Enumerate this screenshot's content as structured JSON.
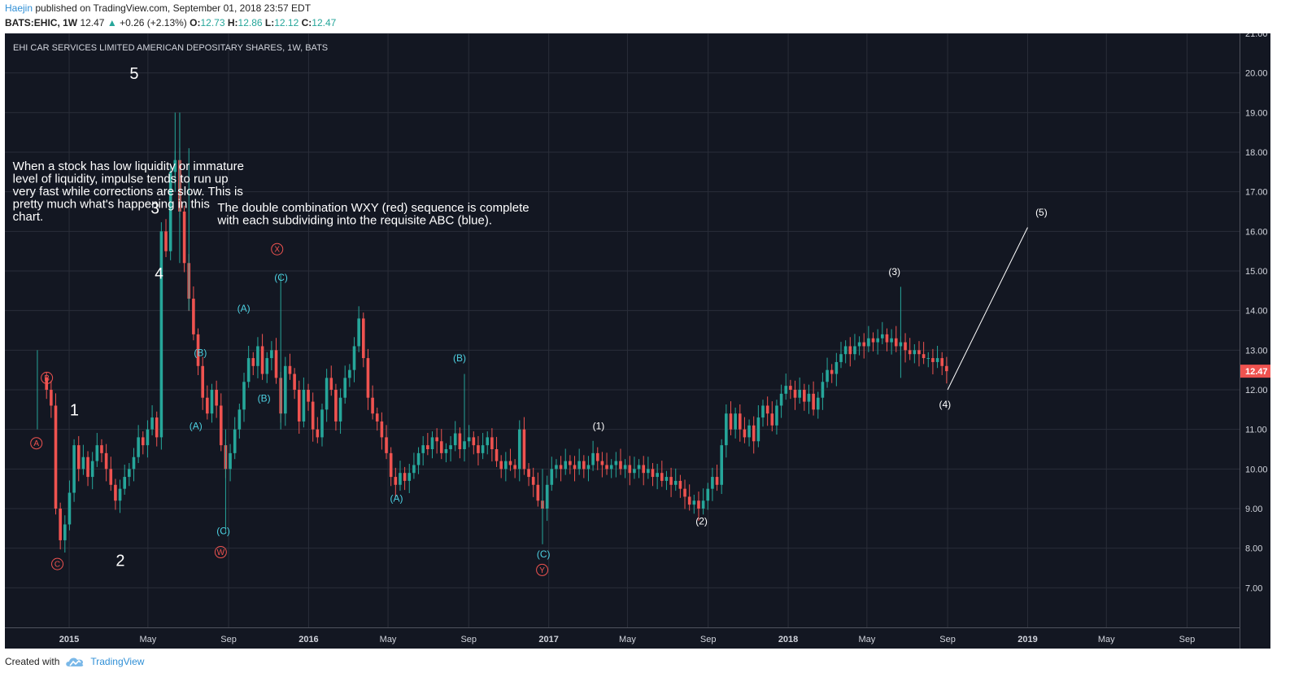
{
  "header": {
    "author": "Haejin",
    "published": "published on TradingView.com, September 01, 2018 23:57 EDT",
    "symbol": "BATS:EHIC, 1W",
    "last": "12.47",
    "change_arrow": "▲",
    "change": "+0.26 (+2.13%)",
    "o_label": "O:",
    "o_value": "12.73",
    "h_label": "H:",
    "h_value": "12.86",
    "l_label": "L:",
    "l_value": "12.12",
    "c_label": "C:",
    "c_value": "12.47"
  },
  "footer": {
    "created_with": "Created with",
    "brand": "TradingView",
    "logo_icon": "tradingview-cloud-icon"
  },
  "colors": {
    "background": "#131722",
    "grid": "#2a2e39",
    "up": "#26a69a",
    "down": "#ef5350",
    "red_label": "#ef5350",
    "blue_label": "#4dd0e1",
    "text": "#d1d4dc"
  },
  "chart_data": {
    "type": "candlestick",
    "title": "EHI CAR SERVICES LIMITED AMERICAN DEPOSITARY SHARES, 1W, BATS",
    "ylim": [
      6,
      21
    ],
    "yticks": [
      "21.00",
      "20.00",
      "19.00",
      "18.00",
      "17.00",
      "16.00",
      "15.00",
      "14.00",
      "13.00",
      "12.00",
      "11.00",
      "10.00",
      "9.00",
      "8.00",
      "7.00"
    ],
    "xlim": [
      "2014-09-25",
      "2019-11-20"
    ],
    "xticks": [
      {
        "date": "2015-01-01",
        "label": "2015",
        "bold": true
      },
      {
        "date": "2015-05-01",
        "label": "May",
        "bold": false
      },
      {
        "date": "2015-09-01",
        "label": "Sep",
        "bold": false
      },
      {
        "date": "2016-01-01",
        "label": "2016",
        "bold": true
      },
      {
        "date": "2016-05-01",
        "label": "May",
        "bold": false
      },
      {
        "date": "2016-09-01",
        "label": "Sep",
        "bold": false
      },
      {
        "date": "2017-01-01",
        "label": "2017",
        "bold": true
      },
      {
        "date": "2017-05-01",
        "label": "May",
        "bold": false
      },
      {
        "date": "2017-09-01",
        "label": "Sep",
        "bold": false
      },
      {
        "date": "2018-01-01",
        "label": "2018",
        "bold": true
      },
      {
        "date": "2018-05-01",
        "label": "May",
        "bold": false
      },
      {
        "date": "2018-09-01",
        "label": "Sep",
        "bold": false
      },
      {
        "date": "2019-01-01",
        "label": "2019",
        "bold": true
      },
      {
        "date": "2019-05-01",
        "label": "May",
        "bold": false
      },
      {
        "date": "2019-09-01",
        "label": "Sep",
        "bold": false
      }
    ],
    "last_price_label": "12.47",
    "last_price": 12.47,
    "path": [
      [
        "2014-11-24",
        12.0
      ],
      [
        "2014-12-01",
        11.6
      ],
      [
        "2014-12-08",
        9.0
      ],
      [
        "2014-12-15",
        8.2
      ],
      [
        "2014-12-22",
        8.6
      ],
      [
        "2014-12-29",
        9.4
      ],
      [
        "2015-01-05",
        10.6
      ],
      [
        "2015-01-12",
        10.0
      ],
      [
        "2015-01-19",
        10.3
      ],
      [
        "2015-01-26",
        9.8
      ],
      [
        "2015-02-02",
        10.2
      ],
      [
        "2015-02-09",
        10.6
      ],
      [
        "2015-02-16",
        10.4
      ],
      [
        "2015-02-23",
        10.0
      ],
      [
        "2015-03-02",
        9.6
      ],
      [
        "2015-03-09",
        9.2
      ],
      [
        "2015-03-16",
        9.5
      ],
      [
        "2015-03-23",
        9.8
      ],
      [
        "2015-03-30",
        10.0
      ],
      [
        "2015-04-06",
        10.3
      ],
      [
        "2015-04-13",
        10.8
      ],
      [
        "2015-04-20",
        10.6
      ],
      [
        "2015-04-27",
        11.0
      ],
      [
        "2015-05-04",
        11.3
      ],
      [
        "2015-05-11",
        10.8
      ],
      [
        "2015-05-18",
        16.0
      ],
      [
        "2015-05-25",
        15.5
      ],
      [
        "2015-06-01",
        17.5
      ],
      [
        "2015-06-08",
        17.8
      ],
      [
        "2015-06-15",
        16.5
      ],
      [
        "2015-06-22",
        15.2
      ],
      [
        "2015-06-29",
        14.3
      ],
      [
        "2015-07-06",
        13.4
      ],
      [
        "2015-07-13",
        12.6
      ],
      [
        "2015-07-20",
        11.8
      ],
      [
        "2015-07-27",
        11.4
      ],
      [
        "2015-08-03",
        12.0
      ],
      [
        "2015-08-10",
        11.6
      ],
      [
        "2015-08-17",
        10.6
      ],
      [
        "2015-08-24",
        10.0
      ],
      [
        "2015-08-31",
        10.4
      ],
      [
        "2015-09-07",
        11.0
      ],
      [
        "2015-09-14",
        11.5
      ],
      [
        "2015-09-21",
        12.2
      ],
      [
        "2015-09-28",
        12.8
      ],
      [
        "2015-10-05",
        12.6
      ],
      [
        "2015-10-12",
        13.1
      ],
      [
        "2015-10-19",
        12.4
      ],
      [
        "2015-10-26",
        12.8
      ],
      [
        "2015-11-02",
        13.0
      ],
      [
        "2015-11-09",
        12.3
      ],
      [
        "2015-11-16",
        11.4
      ],
      [
        "2015-11-23",
        12.6
      ],
      [
        "2015-11-30",
        12.4
      ],
      [
        "2015-12-07",
        12.0
      ],
      [
        "2015-12-14",
        11.2
      ],
      [
        "2015-12-21",
        12.0
      ],
      [
        "2015-12-28",
        11.7
      ],
      [
        "2016-01-04",
        11.0
      ],
      [
        "2016-01-11",
        10.8
      ],
      [
        "2016-01-18",
        11.5
      ],
      [
        "2016-01-25",
        12.3
      ],
      [
        "2016-02-01",
        12.0
      ],
      [
        "2016-02-08",
        11.2
      ],
      [
        "2016-02-15",
        11.8
      ],
      [
        "2016-02-22",
        12.3
      ],
      [
        "2016-02-29",
        12.5
      ],
      [
        "2016-03-07",
        13.1
      ],
      [
        "2016-03-14",
        13.8
      ],
      [
        "2016-03-21",
        12.8
      ],
      [
        "2016-03-28",
        11.8
      ],
      [
        "2016-04-04",
        11.4
      ],
      [
        "2016-04-11",
        11.2
      ],
      [
        "2016-04-18",
        10.8
      ],
      [
        "2016-04-25",
        10.4
      ],
      [
        "2016-05-02",
        9.8
      ],
      [
        "2016-05-09",
        9.6
      ],
      [
        "2016-05-16",
        9.9
      ],
      [
        "2016-05-23",
        9.7
      ],
      [
        "2016-05-30",
        9.9
      ],
      [
        "2016-06-06",
        10.1
      ],
      [
        "2016-06-13",
        10.4
      ],
      [
        "2016-06-20",
        10.6
      ],
      [
        "2016-06-27",
        10.5
      ],
      [
        "2016-07-04",
        10.8
      ],
      [
        "2016-07-11",
        10.7
      ],
      [
        "2016-07-18",
        10.4
      ],
      [
        "2016-07-25",
        10.5
      ],
      [
        "2016-08-01",
        10.6
      ],
      [
        "2016-08-08",
        10.9
      ],
      [
        "2016-08-15",
        10.5
      ],
      [
        "2016-08-22",
        10.7
      ],
      [
        "2016-08-29",
        10.8
      ],
      [
        "2016-09-05",
        10.6
      ],
      [
        "2016-09-12",
        10.4
      ],
      [
        "2016-09-19",
        10.6
      ],
      [
        "2016-09-26",
        10.8
      ],
      [
        "2016-10-03",
        10.5
      ],
      [
        "2016-10-10",
        10.2
      ],
      [
        "2016-10-17",
        10.0
      ],
      [
        "2016-10-24",
        10.2
      ],
      [
        "2016-10-31",
        10.1
      ],
      [
        "2016-11-07",
        10.0
      ],
      [
        "2016-11-14",
        11.0
      ],
      [
        "2016-11-21",
        10.0
      ],
      [
        "2016-11-28",
        9.8
      ],
      [
        "2016-12-05",
        9.6
      ],
      [
        "2016-12-12",
        9.2
      ],
      [
        "2016-12-19",
        9.0
      ],
      [
        "2016-12-26",
        9.6
      ],
      [
        "2017-01-02",
        10.0
      ],
      [
        "2017-01-09",
        10.1
      ],
      [
        "2017-01-16",
        10.0
      ],
      [
        "2017-01-23",
        10.2
      ],
      [
        "2017-01-30",
        10.1
      ],
      [
        "2017-02-06",
        10.0
      ],
      [
        "2017-02-13",
        10.2
      ],
      [
        "2017-02-20",
        10.0
      ],
      [
        "2017-02-27",
        10.1
      ],
      [
        "2017-03-06",
        10.4
      ],
      [
        "2017-03-13",
        10.2
      ],
      [
        "2017-03-20",
        10.1
      ],
      [
        "2017-03-27",
        10.0
      ],
      [
        "2017-04-03",
        10.1
      ],
      [
        "2017-04-10",
        10.2
      ],
      [
        "2017-04-17",
        10.0
      ],
      [
        "2017-04-24",
        10.1
      ],
      [
        "2017-05-01",
        9.9
      ],
      [
        "2017-05-08",
        10.0
      ],
      [
        "2017-05-15",
        10.1
      ],
      [
        "2017-05-22",
        9.9
      ],
      [
        "2017-05-29",
        10.0
      ],
      [
        "2017-06-05",
        9.8
      ],
      [
        "2017-06-12",
        9.9
      ],
      [
        "2017-06-19",
        9.7
      ],
      [
        "2017-06-26",
        9.8
      ],
      [
        "2017-07-03",
        9.6
      ],
      [
        "2017-07-10",
        9.7
      ],
      [
        "2017-07-17",
        9.5
      ],
      [
        "2017-07-24",
        9.3
      ],
      [
        "2017-07-31",
        9.1
      ],
      [
        "2017-08-07",
        9.2
      ],
      [
        "2017-08-14",
        9.0
      ],
      [
        "2017-08-21",
        9.2
      ],
      [
        "2017-08-28",
        9.5
      ],
      [
        "2017-09-04",
        9.8
      ],
      [
        "2017-09-11",
        9.6
      ],
      [
        "2017-09-18",
        10.6
      ],
      [
        "2017-09-25",
        11.4
      ],
      [
        "2017-10-02",
        11.0
      ],
      [
        "2017-10-09",
        11.4
      ],
      [
        "2017-10-16",
        11.0
      ],
      [
        "2017-10-23",
        10.8
      ],
      [
        "2017-10-30",
        11.1
      ],
      [
        "2017-11-06",
        10.7
      ],
      [
        "2017-11-13",
        11.3
      ],
      [
        "2017-11-20",
        11.6
      ],
      [
        "2017-11-27",
        11.4
      ],
      [
        "2017-12-04",
        11.1
      ],
      [
        "2017-12-11",
        11.6
      ],
      [
        "2017-12-18",
        11.9
      ],
      [
        "2017-12-25",
        12.1
      ],
      [
        "2018-01-01",
        12.0
      ],
      [
        "2018-01-08",
        11.8
      ],
      [
        "2018-01-15",
        12.0
      ],
      [
        "2018-01-22",
        11.7
      ],
      [
        "2018-01-29",
        11.9
      ],
      [
        "2018-02-05",
        11.5
      ],
      [
        "2018-02-12",
        11.8
      ],
      [
        "2018-02-19",
        12.2
      ],
      [
        "2018-02-26",
        12.5
      ],
      [
        "2018-03-05",
        12.4
      ],
      [
        "2018-03-12",
        12.7
      ],
      [
        "2018-03-19",
        12.9
      ],
      [
        "2018-03-26",
        13.1
      ],
      [
        "2018-04-02",
        12.9
      ],
      [
        "2018-04-09",
        13.1
      ],
      [
        "2018-04-16",
        13.2
      ],
      [
        "2018-04-23",
        13.1
      ],
      [
        "2018-04-30",
        13.3
      ],
      [
        "2018-05-07",
        13.2
      ],
      [
        "2018-05-14",
        13.3
      ],
      [
        "2018-05-21",
        13.4
      ],
      [
        "2018-05-28",
        13.2
      ],
      [
        "2018-06-04",
        13.3
      ],
      [
        "2018-06-11",
        13.1
      ],
      [
        "2018-06-18",
        13.2
      ],
      [
        "2018-06-25",
        13.0
      ],
      [
        "2018-07-02",
        12.9
      ],
      [
        "2018-07-09",
        13.0
      ],
      [
        "2018-07-16",
        12.9
      ],
      [
        "2018-07-23",
        12.8
      ],
      [
        "2018-07-30",
        12.8
      ],
      [
        "2018-08-06",
        12.7
      ],
      [
        "2018-08-13",
        12.8
      ],
      [
        "2018-08-20",
        12.6
      ],
      [
        "2018-08-27",
        12.47
      ]
    ],
    "spikes": [
      {
        "date": "2014-11-10",
        "hi": 13.0,
        "lo": 11.0
      },
      {
        "date": "2015-06-08",
        "hi": 19.0,
        "lo": 17.0
      },
      {
        "date": "2015-06-15",
        "hi": 19.0,
        "lo": 15.2
      },
      {
        "date": "2015-06-29",
        "hi": 18.1,
        "lo": 14.0
      },
      {
        "date": "2015-08-24",
        "hi": 11.0,
        "lo": 8.4
      },
      {
        "date": "2015-11-16",
        "hi": 14.9,
        "lo": 11.0
      },
      {
        "date": "2016-08-22",
        "hi": 12.4,
        "lo": 10.4
      },
      {
        "date": "2016-12-19",
        "hi": 10.0,
        "lo": 8.1
      },
      {
        "date": "2018-06-18",
        "hi": 14.6,
        "lo": 12.3
      }
    ],
    "texts": [
      {
        "date": "2015-04-10",
        "y": 19.85,
        "text": "5",
        "color": "#ffffff",
        "size": 20
      },
      {
        "date": "2015-05-12",
        "y": 16.45,
        "text": "3",
        "color": "#ffffff",
        "size": 19
      },
      {
        "date": "2015-05-18",
        "y": 14.8,
        "text": "4",
        "color": "#ffffff",
        "size": 19
      },
      {
        "date": "2015-01-09",
        "y": 11.35,
        "text": "1",
        "color": "#ffffff",
        "size": 20
      },
      {
        "date": "2015-03-20",
        "y": 7.55,
        "text": "2",
        "color": "#ffffff",
        "size": 20
      },
      {
        "date": "2015-07-20",
        "y": 12.85,
        "text": "(B)",
        "color": "#4dd0e1",
        "size": 12
      },
      {
        "date": "2015-07-13",
        "y": 11.0,
        "text": "(A)",
        "color": "#4dd0e1",
        "size": 12
      },
      {
        "date": "2015-08-24",
        "y": 8.35,
        "text": "(C)",
        "color": "#4dd0e1",
        "size": 12
      },
      {
        "date": "2015-09-24",
        "y": 13.97,
        "text": "(A)",
        "color": "#4dd0e1",
        "size": 12
      },
      {
        "date": "2015-10-25",
        "y": 11.7,
        "text": "(B)",
        "color": "#4dd0e1",
        "size": 12
      },
      {
        "date": "2015-11-20",
        "y": 14.75,
        "text": "(C)",
        "color": "#4dd0e1",
        "size": 12
      },
      {
        "date": "2016-05-14",
        "y": 9.17,
        "text": "(A)",
        "color": "#4dd0e1",
        "size": 12
      },
      {
        "date": "2016-08-18",
        "y": 12.72,
        "text": "(B)",
        "color": "#4dd0e1",
        "size": 12
      },
      {
        "date": "2016-12-24",
        "y": 7.77,
        "text": "(C)",
        "color": "#4dd0e1",
        "size": 12
      },
      {
        "date": "2017-03-18",
        "y": 11.0,
        "text": "(1)",
        "color": "#ffffff",
        "size": 12
      },
      {
        "date": "2017-08-22",
        "y": 8.6,
        "text": "(2)",
        "color": "#ffffff",
        "size": 12
      },
      {
        "date": "2018-06-12",
        "y": 14.9,
        "text": "(3)",
        "color": "#ffffff",
        "size": 12
      },
      {
        "date": "2018-08-28",
        "y": 11.55,
        "text": "(4)",
        "color": "#ffffff",
        "size": 12
      },
      {
        "date": "2019-01-22",
        "y": 16.4,
        "text": "(5)",
        "color": "#ffffff",
        "size": 12
      }
    ],
    "circles": [
      {
        "date": "2014-11-28",
        "y": 12.3,
        "text": "B"
      },
      {
        "date": "2014-11-12",
        "y": 10.65,
        "text": "A"
      },
      {
        "date": "2014-12-14",
        "y": 7.6,
        "text": "C"
      },
      {
        "date": "2015-08-20",
        "y": 7.9,
        "text": "W"
      },
      {
        "date": "2015-11-14",
        "y": 15.55,
        "text": "X"
      },
      {
        "date": "2016-12-22",
        "y": 7.45,
        "text": "Y"
      }
    ],
    "projection": [
      [
        "2018-09-01",
        12.0
      ],
      [
        "2019-01-01",
        16.1
      ]
    ],
    "notes": [
      {
        "date": "2014-10-07",
        "y": 17.55,
        "lines": [
          "When a stock has low liquidity or immature",
          "level of liquidity, impulse tends to run up",
          "very fast while corrections are slow. This is",
          "pretty much what's happening in this",
          "chart."
        ]
      },
      {
        "date": "2015-08-15",
        "y": 16.5,
        "lines": [
          "The double combination WXY (red) sequence is complete",
          "with each subdividing into the requisite ABC (blue)."
        ]
      }
    ]
  }
}
